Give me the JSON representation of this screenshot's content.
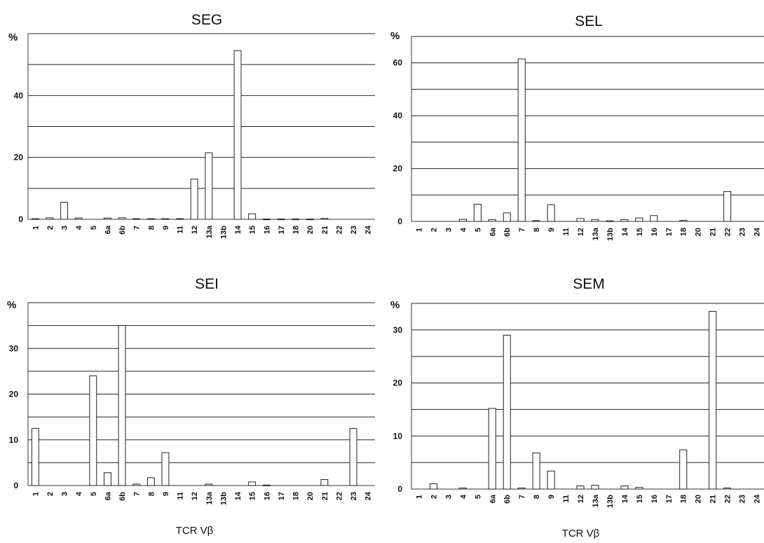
{
  "chart_data": [
    {
      "type": "bar",
      "title": "SEG",
      "ylabel": "%",
      "xlabel": "",
      "ylim": [
        0,
        60
      ],
      "yticks": [
        0,
        20,
        40
      ],
      "gridlines": [
        10,
        20,
        30,
        40,
        50,
        60
      ],
      "categories": [
        "1",
        "2",
        "3",
        "4",
        "5",
        "6a",
        "6b",
        "7",
        "8",
        "9",
        "11",
        "12",
        "13a",
        "13b",
        "14",
        "15",
        "16",
        "17",
        "18",
        "20",
        "21",
        "22",
        "23",
        "24"
      ],
      "values": [
        0.2,
        0.5,
        5.5,
        0.4,
        0,
        0.4,
        0.5,
        0.2,
        0.2,
        0.2,
        0.2,
        13,
        21.5,
        0,
        54.5,
        1.8,
        0.1,
        0.1,
        0.1,
        0.1,
        0.3,
        0,
        0,
        0
      ]
    },
    {
      "type": "bar",
      "title": "SEL",
      "ylabel": "%",
      "xlabel": "",
      "ylim": [
        0,
        70
      ],
      "yticks": [
        0,
        20,
        40,
        60
      ],
      "gridlines": [
        10,
        20,
        30,
        40,
        50,
        60,
        70
      ],
      "categories": [
        "1",
        "2",
        "3",
        "4",
        "5",
        "6a",
        "6b",
        "7",
        "8",
        "9",
        "11",
        "12",
        "13a",
        "13b",
        "14",
        "15",
        "16",
        "17",
        "18",
        "20",
        "21",
        "22",
        "23",
        "24"
      ],
      "values": [
        0,
        0,
        0,
        0.8,
        6.5,
        0.7,
        3.2,
        61.5,
        0.3,
        6.3,
        0,
        1.1,
        0.7,
        0.2,
        0.7,
        1.3,
        2.2,
        0,
        0.4,
        0,
        0,
        11.3,
        0,
        0
      ]
    },
    {
      "type": "bar",
      "title": "SEI",
      "ylabel": "%",
      "xlabel": "TCR Vβ",
      "ylim": [
        0,
        40
      ],
      "yticks": [
        0,
        10,
        20,
        30
      ],
      "gridlines": [
        5,
        10,
        15,
        20,
        25,
        30,
        35,
        40
      ],
      "categories": [
        "1",
        "2",
        "3",
        "4",
        "5",
        "6a",
        "6b",
        "7",
        "8",
        "9",
        "11",
        "12",
        "13a",
        "13b",
        "14",
        "15",
        "16",
        "17",
        "18",
        "20",
        "21",
        "22",
        "23",
        "24"
      ],
      "values": [
        12.5,
        0,
        0,
        0,
        24,
        2.8,
        35,
        0.3,
        1.7,
        7.2,
        0,
        0,
        0.3,
        0,
        0,
        0.8,
        0.1,
        0,
        0,
        0,
        1.3,
        0,
        12.5,
        0
      ]
    },
    {
      "type": "bar",
      "title": "SEM",
      "ylabel": "%",
      "xlabel": "TCR Vβ",
      "ylim": [
        0,
        35
      ],
      "yticks": [
        0,
        10,
        20,
        30
      ],
      "gridlines": [
        5,
        10,
        15,
        20,
        25,
        30,
        35
      ],
      "categories": [
        "1",
        "2",
        "3",
        "4",
        "5",
        "6a",
        "6b",
        "7",
        "8",
        "9",
        "11",
        "12",
        "13a",
        "13b",
        "14",
        "15",
        "16",
        "17",
        "18",
        "20",
        "21",
        "22",
        "23",
        "24"
      ],
      "values": [
        0,
        1,
        0,
        0.2,
        0,
        15.2,
        29,
        0.2,
        6.8,
        3.4,
        0,
        0.6,
        0.7,
        0,
        0.6,
        0.3,
        0,
        0,
        7.4,
        0,
        33.5,
        0.2,
        0,
        0
      ]
    }
  ]
}
